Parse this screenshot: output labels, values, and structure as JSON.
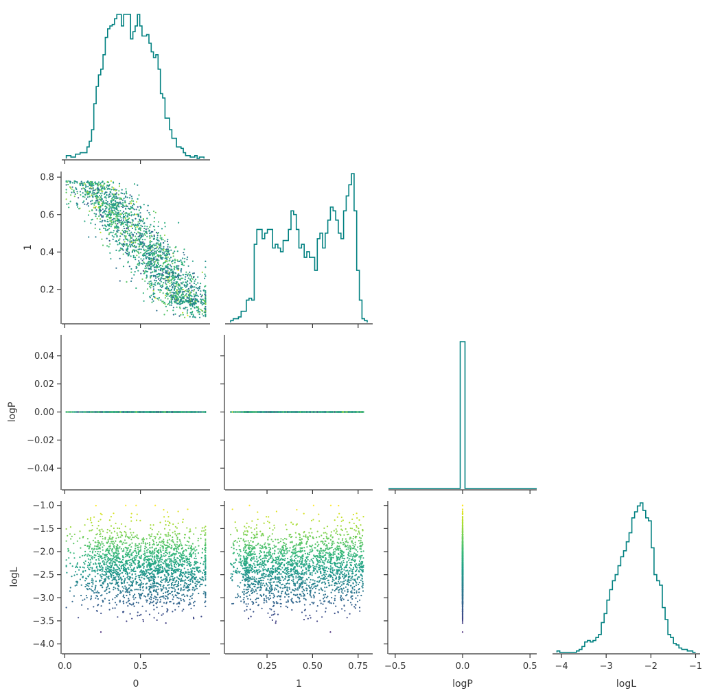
{
  "chart_data": {
    "type": "corner",
    "parameters": [
      "0",
      "1",
      "logP",
      "logL"
    ],
    "colormap": "viridis",
    "color_by": "logL",
    "hist_color": "#008080",
    "grid": false,
    "axes": {
      "0": {
        "lim": [
          -0.02,
          0.96
        ],
        "ticks": [
          0.0,
          0.5
        ],
        "tick_labels": [
          "0.0",
          "0.5"
        ],
        "label": "0"
      },
      "1": {
        "lim": [
          0.02,
          0.83
        ],
        "ticks": [
          0.2,
          0.4,
          0.6,
          0.8
        ],
        "tick_labels": [
          "0.2",
          "0.4",
          "0.6",
          "0.8"
        ],
        "xticks": [
          0.25,
          0.5,
          0.75
        ],
        "xtick_labels": [
          "0.25",
          "0.50",
          "0.75"
        ],
        "label": "1"
      },
      "logP": {
        "lim": [
          -0.055,
          0.055
        ],
        "ticks": [
          -0.04,
          -0.02,
          0.0,
          0.02,
          0.04
        ],
        "tick_labels": [
          "−0.04",
          "−0.02",
          "0.00",
          "0.02",
          "0.04"
        ],
        "xlim": [
          -0.55,
          0.55
        ],
        "xticks": [
          -0.5,
          0.0,
          0.5
        ],
        "xtick_labels": [
          "−0.5",
          "0.0",
          "0.5"
        ],
        "label": "logP"
      },
      "logL": {
        "lim": [
          -4.2,
          -0.9
        ],
        "ticks": [
          -4.0,
          -3.5,
          -3.0,
          -2.5,
          -2.0,
          -1.5,
          -1.0
        ],
        "tick_labels": [
          "−4.0",
          "−3.5",
          "−3.0",
          "−2.5",
          "−2.0",
          "−1.5",
          "−1.0"
        ],
        "xlim": [
          -4.2,
          -0.9
        ],
        "xticks": [
          -4,
          -3,
          -2,
          -1
        ],
        "xtick_labels": [
          "−4",
          "−3",
          "−2",
          "−1"
        ],
        "label": "logL"
      }
    },
    "histograms": {
      "0": {
        "edges_range": [
          0.01,
          0.92
        ],
        "counts": [
          2,
          2,
          1,
          1,
          3,
          3,
          4,
          4,
          4,
          8,
          12,
          20,
          38,
          50,
          58,
          62,
          72,
          84,
          90,
          92,
          93,
          97,
          100,
          100,
          92,
          100,
          100,
          100,
          83,
          88,
          92,
          100,
          92,
          85,
          85,
          86,
          80,
          74,
          70,
          72,
          62,
          45,
          42,
          28,
          28,
          20,
          14,
          14,
          8,
          8,
          7,
          4,
          2,
          2,
          1,
          1,
          2,
          0,
          1,
          1
        ]
      },
      "1": {
        "edges_range": [
          0.05,
          0.8
        ],
        "counts": [
          1,
          2,
          2,
          3,
          6,
          6,
          12,
          13,
          12,
          42,
          50,
          50,
          45,
          48,
          50,
          50,
          40,
          42,
          40,
          38,
          44,
          44,
          50,
          60,
          58,
          50,
          40,
          42,
          35,
          38,
          35,
          35,
          28,
          45,
          48,
          40,
          48,
          55,
          62,
          60,
          55,
          48,
          45,
          60,
          68,
          74,
          80,
          60,
          28,
          12,
          2,
          1
        ]
      },
      "logP": {
        "spike_at": 0.0,
        "spike_width": 0.05,
        "counts": [
          1
        ]
      },
      "logL": {
        "edges_range": [
          -4.1,
          -1.0
        ],
        "counts": [
          1,
          0,
          0,
          0,
          0,
          0,
          0,
          1,
          2,
          4,
          7,
          8,
          7,
          8,
          10,
          12,
          20,
          26,
          35,
          42,
          48,
          52,
          58,
          64,
          68,
          74,
          80,
          90,
          94,
          98,
          100,
          95,
          90,
          88,
          70,
          52,
          48,
          45,
          30,
          22,
          12,
          10,
          6,
          5,
          3,
          2,
          2,
          1,
          1,
          0
        ]
      }
    },
    "scatter": {
      "n_points": 2100,
      "note": "correlation"
    }
  }
}
